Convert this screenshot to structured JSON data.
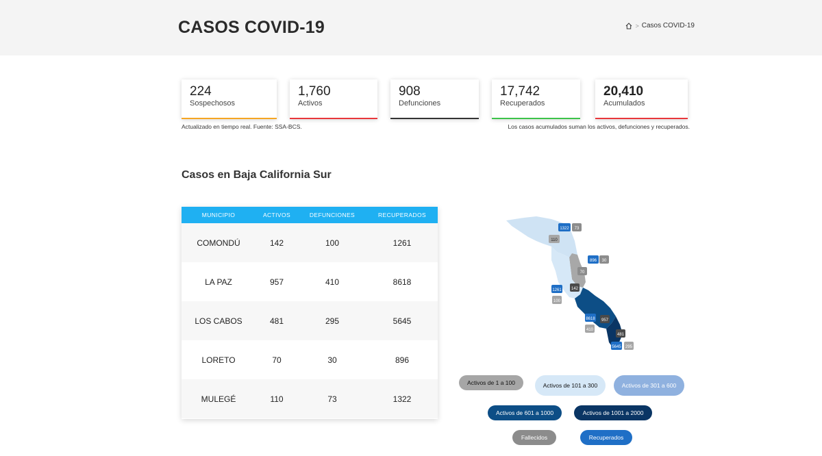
{
  "header": {
    "title": "CASOS COVID-19",
    "breadcrumb_current": "Casos COVID-19"
  },
  "stats": [
    {
      "value": "224",
      "label": "Sospechosos",
      "color": "#f5a623"
    },
    {
      "value": "1,760",
      "label": "Activos",
      "color": "#e8373b"
    },
    {
      "value": "908",
      "label": "Defunciones",
      "color": "#333333"
    },
    {
      "value": "17,742",
      "label": "Recuperados",
      "color": "#3cc34a"
    },
    {
      "value": "20,410",
      "label": "Acumulados",
      "color": "#e8373b"
    }
  ],
  "notes": {
    "left": "Actualizado en tiempo real. Fuente: SSA-BCS.",
    "right": "Los casos acumulados suman los activos, defunciones y recuperados."
  },
  "section_title": "Casos en Baja California Sur",
  "table": {
    "headers": [
      "MUNICIPIO",
      "ACTIVOS",
      "DEFUNCIONES",
      "RECUPERADOS"
    ],
    "rows": [
      {
        "municipio": "COMONDÚ",
        "activos": "142",
        "defunciones": "100",
        "recuperados": "1261"
      },
      {
        "municipio": "LA PAZ",
        "activos": "957",
        "defunciones": "410",
        "recuperados": "8618"
      },
      {
        "municipio": "LOS CABOS",
        "activos": "481",
        "defunciones": "295",
        "recuperados": "5645"
      },
      {
        "municipio": "LORETO",
        "activos": "70",
        "defunciones": "30",
        "recuperados": "896"
      },
      {
        "municipio": "MULEGÉ",
        "activos": "110",
        "defunciones": "73",
        "recuperados": "1322"
      }
    ]
  },
  "map_labels": {
    "mulege_recuperados": "1322",
    "mulege_defunciones": "73",
    "mulege_activos": "110",
    "loreto_recuperados": "896",
    "loreto_defunciones": "30",
    "loreto_activos": "70",
    "comondu_recuperados": "1261",
    "comondu_defunciones": "100",
    "comondu_activos": "142",
    "lapaz_recuperados": "8618",
    "lapaz_activos": "957",
    "lapaz_defunciones": "410",
    "loscabos_activos": "481",
    "loscabos_recuperados": "5645",
    "loscabos_defunciones": "295"
  },
  "legend": {
    "l1": "Activos de 1 a 100",
    "l2": "Activos de 101 a 300",
    "l3": "Activos de 301 a 600",
    "l4": "Activos de 601 a 1000",
    "l5": "Activos de 1001 a 2000",
    "l6": "Fallecidos",
    "l7": "Recuperados"
  },
  "colors": {
    "table_header": "#1fb0f2",
    "legend_1_100": "#a6a6a6",
    "legend_101_300": "#d6e8f7",
    "legend_301_600": "#8fb1df",
    "legend_601_1000": "#0d4e86",
    "legend_1001_2000": "#0a3564",
    "fallecidos": "#8c8c8c",
    "recuperados": "#1f6fc6"
  }
}
